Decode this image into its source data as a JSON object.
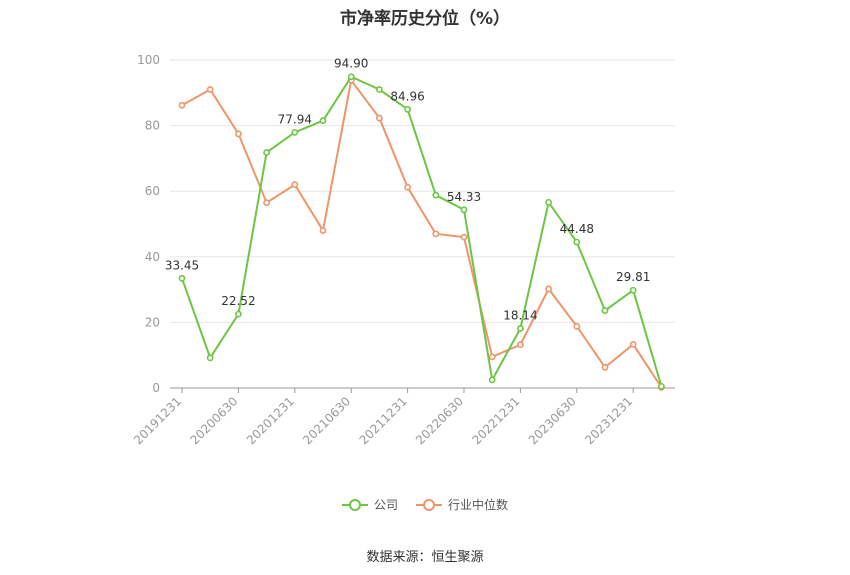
{
  "chart_data": {
    "type": "line",
    "title": "市净率历史分位（%）",
    "x": [
      "20191231",
      "20200331",
      "20200630",
      "20200930",
      "20201231",
      "20210331",
      "20210630",
      "20210930",
      "20211231",
      "20220331",
      "20220630",
      "20220930",
      "20221231",
      "20230331",
      "20230630",
      "20230930",
      "20231231",
      "20240331"
    ],
    "tick_labels": [
      "20191231",
      "20200630",
      "20201231",
      "20210630",
      "20211231",
      "20220630",
      "20221231",
      "20230630",
      "20231231"
    ],
    "ylim": [
      0,
      100
    ],
    "yticks": [
      0,
      20,
      40,
      60,
      80,
      100
    ],
    "grid": true,
    "legend_position": "bottom",
    "series": [
      {
        "name": "公司",
        "color": "#6cc644",
        "values": [
          33.45,
          9.2,
          22.52,
          71.8,
          77.94,
          81.5,
          94.9,
          91.0,
          84.96,
          58.8,
          54.33,
          2.5,
          18.14,
          56.6,
          44.48,
          23.6,
          29.81,
          0.5
        ],
        "labels": [
          "33.45",
          "",
          "22.52",
          "",
          "77.94",
          "",
          "94.90",
          "",
          "84.96",
          "",
          "54.33",
          "",
          "18.14",
          "",
          "44.48",
          "",
          "29.81",
          ""
        ]
      },
      {
        "name": "行业中位数",
        "color": "#f0946a",
        "values": [
          86.2,
          91.0,
          77.5,
          56.5,
          62.0,
          48.0,
          93.8,
          82.3,
          61.2,
          47.0,
          46.0,
          9.5,
          13.2,
          30.2,
          18.8,
          6.3,
          13.3,
          0.2
        ]
      }
    ]
  },
  "legend": {
    "items": [
      "公司",
      "行业中位数"
    ]
  },
  "source": "数据来源：恒生聚源"
}
